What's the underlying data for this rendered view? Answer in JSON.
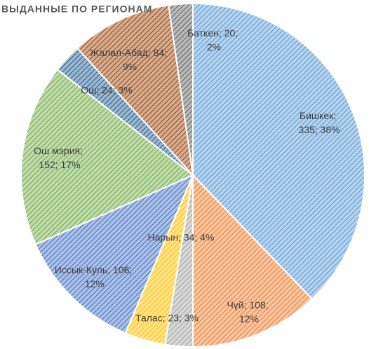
{
  "chart_data": {
    "type": "pie",
    "title": "ВЫДАННЫЕ ПО РЕГИОНАМ",
    "categories": [
      "Бишкек",
      "Чүй",
      "Талас",
      "Нарын",
      "Иссык-Куль",
      "Ош мэрия",
      "Ош",
      "Жалал-Абад",
      "Баткен"
    ],
    "values": [
      335,
      108,
      23,
      34,
      106,
      152,
      24,
      84,
      20
    ],
    "value_labels": [
      "Бишкек; 335; 38%",
      "Чүй; 108; 12%",
      "Талас; 23; 3%",
      "Нарын; 34; 4%",
      "Иссык-Куль; 106; 12%",
      "Ош мэрия; 152; 17%",
      "Ош; 24; 3%",
      "Жалал-Абад; 84; 9%",
      "Баткен; 20; 2%"
    ],
    "colors": [
      "#5b9bd5",
      "#ed7d31",
      "#a5a5a5",
      "#ffc000",
      "#4472c4",
      "#70ad47",
      "#255e91",
      "#9e480e",
      "#636363"
    ]
  }
}
